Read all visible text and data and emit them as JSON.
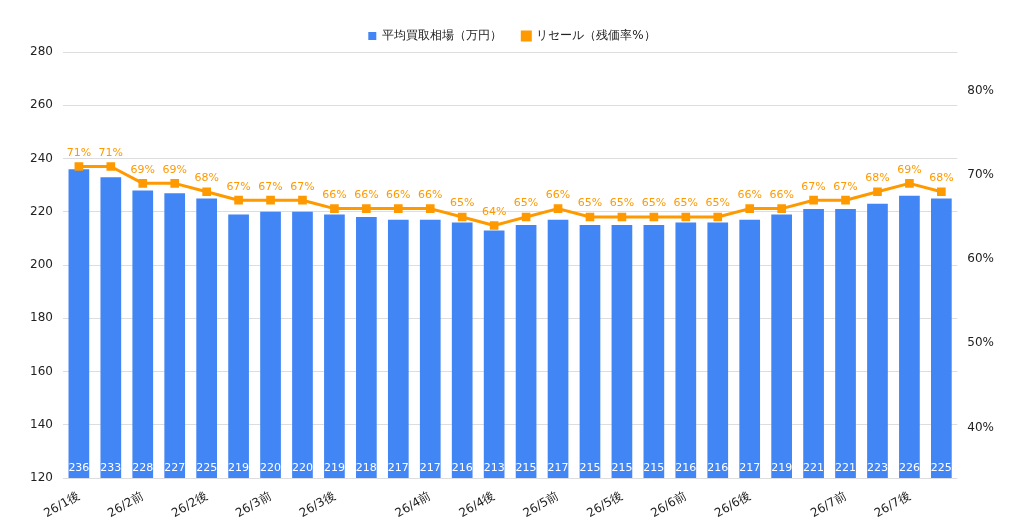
{
  "chart_data": {
    "type": "bar",
    "categories": [
      "26/1後",
      null,
      "26/2前",
      null,
      "26/2後",
      null,
      "26/3前",
      null,
      "26/3後",
      null,
      null,
      "26/4前",
      null,
      "26/4後",
      null,
      "26/5前",
      null,
      "26/5後",
      null,
      "26/6前",
      null,
      "26/6後",
      null,
      null,
      "26/7前",
      null,
      "26/7後",
      null
    ],
    "series": [
      {
        "name": "平均買取相場（万円）",
        "color": "#4285f4",
        "values": [
          236,
          233,
          228,
          227,
          225,
          219,
          220,
          220,
          219,
          218,
          217,
          217,
          216,
          213,
          215,
          217,
          215,
          215,
          215,
          216,
          216,
          217,
          219,
          221,
          221,
          223,
          226,
          225
        ],
        "value_labels": [
          "236",
          "233",
          "228",
          "227",
          "225",
          "219",
          "220",
          "220",
          "219",
          "218",
          "217",
          "217",
          "216",
          "213",
          "215",
          "217",
          "215",
          "215",
          "215",
          "216",
          "216",
          "217",
          "219",
          "221",
          "221",
          "223",
          "226",
          "225"
        ]
      },
      {
        "name": "リセール（残価率%）",
        "type": "line",
        "axis": "y2",
        "color": "#ff9900",
        "values": [
          71,
          71,
          69,
          69,
          68,
          67,
          67,
          67,
          66,
          66,
          66,
          66,
          65,
          64,
          65,
          66,
          65,
          65,
          65,
          65,
          65,
          66,
          66,
          67,
          67,
          68,
          69,
          68
        ],
        "value_labels": [
          "71%",
          "71%",
          "69%",
          "69%",
          "68%",
          "67%",
          "67%",
          "67%",
          "66%",
          "66%",
          "66%",
          "66%",
          "65%",
          "64%",
          "65%",
          "66%",
          "65%",
          "65%",
          "65%",
          "65%",
          "65%",
          "66%",
          "66%",
          "67%",
          "67%",
          "68%",
          "69%",
          "68%"
        ]
      }
    ],
    "ylim": [
      120,
      280
    ],
    "yticks": [
      120,
      140,
      160,
      180,
      200,
      220,
      240,
      260,
      280
    ],
    "y2lim": [
      34,
      84.6
    ],
    "y2ticks": [
      {
        "value": 40,
        "label": "40%"
      },
      {
        "value": 50,
        "label": "50%"
      },
      {
        "value": 60,
        "label": "60%"
      },
      {
        "value": 70,
        "label": "70%"
      },
      {
        "value": 80,
        "label": "80%"
      }
    ],
    "grid": "y",
    "legend": "top",
    "marker": "square",
    "line_style": "solid"
  }
}
